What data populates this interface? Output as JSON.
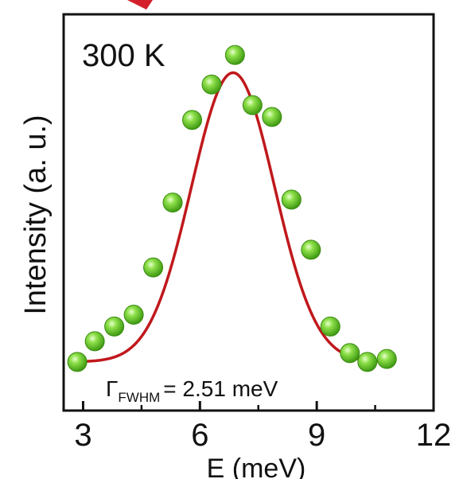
{
  "chart_data": {
    "type": "scatter",
    "annotation": "300 K",
    "ylabel": "Intensity (a. u.)",
    "xlabel": "E (meV)",
    "xlim": [
      2.5,
      12
    ],
    "ylim": [
      0,
      1.1
    ],
    "x_ticks": [
      3,
      6,
      9,
      12
    ],
    "x_tick_labels": [
      "3",
      "6",
      "9",
      "12"
    ],
    "y_ticks_labeled": false,
    "grid": false,
    "fwhm_label": {
      "symbol": "Γ",
      "subscript": "FWHM",
      "value_text": "= 2.51 meV"
    },
    "series": [
      {
        "kind": "points",
        "color": "#5cc21e",
        "x": [
          2.85,
          3.3,
          3.8,
          4.3,
          4.8,
          5.3,
          5.8,
          6.3,
          6.9,
          7.35,
          7.85,
          8.35,
          8.85,
          9.35,
          9.85,
          10.3,
          10.8
        ],
        "y": [
          0.03,
          0.1,
          0.15,
          0.19,
          0.35,
          0.57,
          0.85,
          0.97,
          1.07,
          0.9,
          0.86,
          0.58,
          0.41,
          0.15,
          0.06,
          0.03,
          0.04
        ]
      },
      {
        "kind": "fit",
        "color": "#c0181c",
        "fit": {
          "type": "gaussian",
          "center": 6.85,
          "fwhm": 2.51,
          "amplitude": 0.98,
          "baseline": 0.03
        },
        "x_range": [
          2.85,
          10.9
        ]
      }
    ]
  },
  "colors": {
    "axis": "#111111",
    "text": "#111111",
    "points": "#5cc21e",
    "fit": "#c0181c"
  }
}
